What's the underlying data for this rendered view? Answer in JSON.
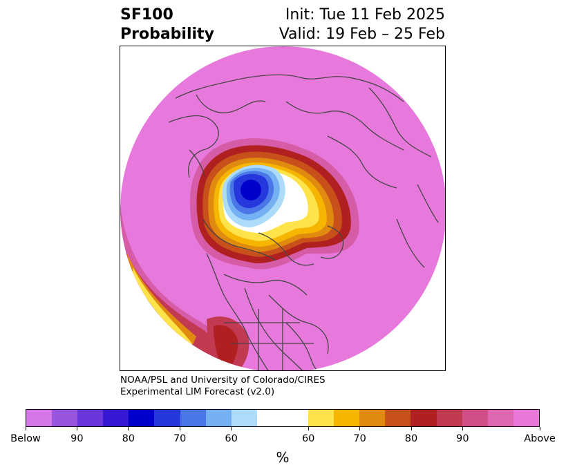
{
  "header": {
    "title_line1": "SF100",
    "title_line2": "Probability",
    "init": "Init: Tue 11 Feb 2025",
    "valid": "Valid: 19 Feb – 25 Feb"
  },
  "credits": {
    "line1": "NOAA/PSL and University of Colorado/CIRES",
    "line2": "Experimental LIM Forecast (v2.0)"
  },
  "colorbar": {
    "unit": "%",
    "colors": [
      "#d576e8",
      "#9a55e0",
      "#6b36dc",
      "#3518d4",
      "#0000cc",
      "#2438dc",
      "#4b76e8",
      "#74b0f2",
      "#acdcfa",
      "#ffffff",
      "#ffe34a",
      "#f5b500",
      "#e08a10",
      "#c8501a",
      "#b02020",
      "#c23a52",
      "#d04f88",
      "#df66b0",
      "#e878d8"
    ],
    "widths": [
      1,
      1,
      1,
      1,
      1,
      1,
      1,
      1,
      1,
      2,
      1,
      1,
      1,
      1,
      1,
      1,
      1,
      1,
      1
    ],
    "tick_labels": [
      "Below",
      "90",
      "80",
      "70",
      "60",
      "60",
      "70",
      "80",
      "90",
      "Above"
    ]
  },
  "map": {
    "background_color": "#e879dc",
    "coastline_color": "#444444"
  }
}
